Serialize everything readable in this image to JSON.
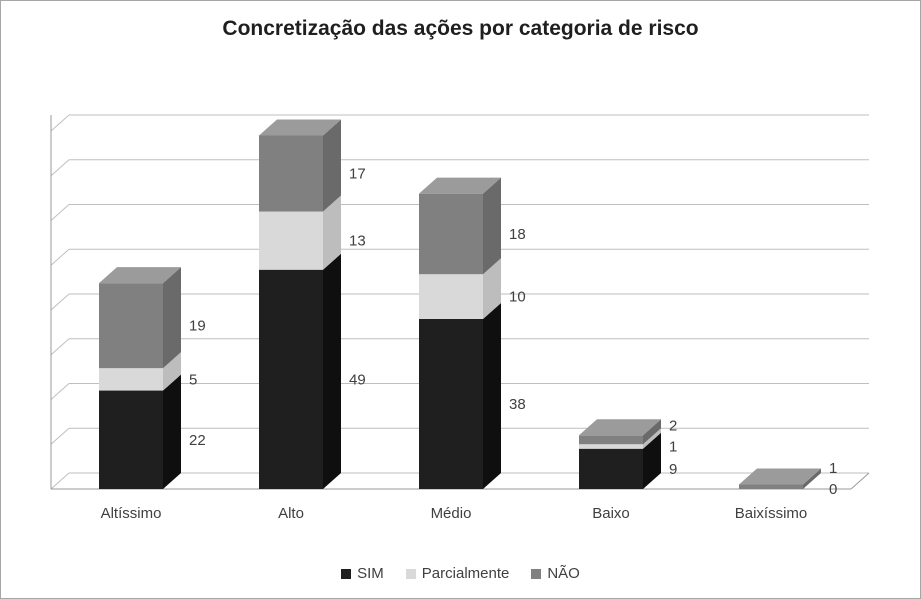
{
  "chart_data": {
    "type": "bar",
    "subtype": "stacked-3d-column",
    "title": "Concretização das ações por categoria de risco",
    "categories": [
      "Altíssimo",
      "Alto",
      "Médio",
      "Baixo",
      "Baixíssimo"
    ],
    "series": [
      {
        "name": "SIM",
        "color": "#1f1f1f",
        "top_color": "#3d3d3d",
        "side_color": "#0f0f0f",
        "values": [
          22,
          49,
          38,
          9,
          0
        ]
      },
      {
        "name": "Parcialmente",
        "color": "#d9d9d9",
        "top_color": "#eaeaea",
        "side_color": "#bdbdbd",
        "values": [
          5,
          13,
          10,
          1,
          0
        ]
      },
      {
        "name": "NÃO",
        "color": "#808080",
        "top_color": "#9b9b9b",
        "side_color": "#6a6a6a",
        "values": [
          19,
          17,
          18,
          2,
          1
        ]
      }
    ],
    "data_labels": [
      [
        22,
        5,
        19
      ],
      [
        49,
        13,
        17
      ],
      [
        38,
        10,
        18
      ],
      [
        9,
        1,
        2
      ],
      [
        0,
        null,
        1
      ]
    ],
    "ylim": [
      0,
      80
    ],
    "y_step": 10,
    "grid": true,
    "legend_position": "bottom",
    "colors": {
      "grid": "#bfbfbf",
      "axis": "#9a9a9a",
      "text": "#404040",
      "border": "#a6a6a6",
      "background": "#ffffff"
    }
  }
}
